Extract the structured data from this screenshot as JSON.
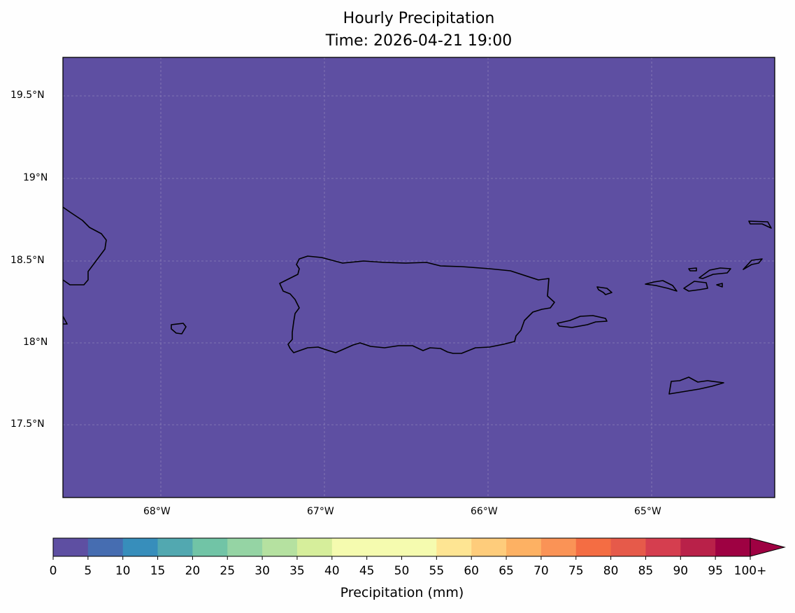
{
  "title": "Hourly Precipitation",
  "subtitle": "Time: 2026-04-21 19:00",
  "chart_data": {
    "type": "heatmap",
    "title": "Hourly Precipitation",
    "subtitle": "Time: 2026-04-21 19:00",
    "region_extent": {
      "lon": [
        -68.6,
        -64.25
      ],
      "lat": [
        17.07,
        19.73
      ]
    },
    "field_value_everywhere_mm": 0,
    "grid": true,
    "x_ticks": [
      "68°W",
      "67°W",
      "66°W",
      "65°W"
    ],
    "y_ticks": [
      "19.5°N",
      "19°N",
      "18.5°N",
      "18°N",
      "17.5°N"
    ],
    "colorbar": {
      "label": "Precipitation (mm)",
      "orientation": "horizontal",
      "placement": "bottom",
      "extend": "max",
      "ticks": [
        "0",
        "5",
        "10",
        "15",
        "20",
        "25",
        "30",
        "35",
        "40",
        "45",
        "50",
        "55",
        "60",
        "65",
        "70",
        "75",
        "80",
        "85",
        "90",
        "95",
        "100+"
      ],
      "colors": [
        "#5e4fa2",
        "#466db1",
        "#378ebb",
        "#52a8b0",
        "#71c4a6",
        "#95d4a4",
        "#b5e1a0",
        "#d6ee9b",
        "#f5fbaf",
        "#f5fbaf",
        "#f5fbaf",
        "#fee593",
        "#fecc7b",
        "#fdb163",
        "#fa9356",
        "#f46d43",
        "#e65a4a",
        "#d53e4f",
        "#b92149",
        "#9e0142"
      ],
      "extend_color": "#9e0142"
    }
  }
}
